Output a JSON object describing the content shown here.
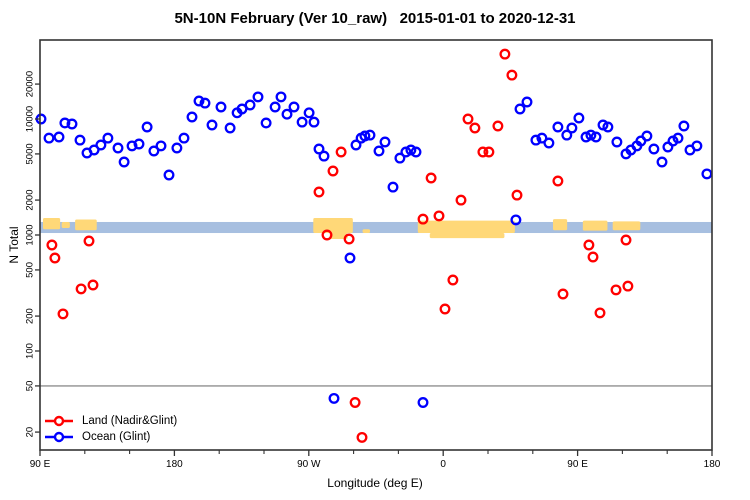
{
  "title": "5N-10N February (Ver 10_raw)   2015-01-01 to 2020-12-31",
  "legend": {
    "items": [
      {
        "label": "Land (Nadir&Glint)",
        "color": "#ff0000"
      },
      {
        "label": "Ocean (Glint)",
        "color": "#0000ff"
      }
    ]
  },
  "colors": {
    "land_series": "#ff0000",
    "ocean_series": "#0000ff",
    "ocean_band": "#a7bfe0",
    "land_band": "#ffd878",
    "reference_line": "#8f8f8f",
    "frame": "#333333"
  },
  "chart_data": {
    "type": "scatter",
    "title": "5N-10N February (Ver 10_raw)   2015-01-01 to 2020-12-31",
    "xlabel": "Longitude (deg E)",
    "ylabel": "N Total",
    "y_scale": "log",
    "ylim": [
      14,
      48000
    ],
    "y_ticks": [
      20,
      50,
      100,
      200,
      500,
      1000,
      2000,
      5000,
      10000,
      20000
    ],
    "x_axis_unwrapped_deg_range": [
      90,
      540
    ],
    "x_major_ticks": [
      {
        "deg": 90,
        "label": "90 E"
      },
      {
        "deg": 180,
        "label": "180"
      },
      {
        "deg": 270,
        "label": "90 W"
      },
      {
        "deg": 360,
        "label": "0"
      },
      {
        "deg": 450,
        "label": "90 E"
      },
      {
        "deg": 540,
        "label": "180"
      }
    ],
    "x_minor_ticks_deg": [
      120,
      150,
      210,
      240,
      300,
      330,
      390,
      420,
      480,
      510
    ],
    "reference_line_value": 50,
    "ocean_band": {
      "value_range": [
        1040,
        1295
      ],
      "note": "map strip: ocean"
    },
    "land_patches": [
      {
        "deg": [
          92,
          103.5
        ],
        "values": [
          1400,
          1120
        ]
      },
      {
        "deg": [
          104.5,
          110
        ],
        "values": [
          1294,
          1150
        ]
      },
      {
        "deg": [
          113.5,
          128
        ],
        "values": [
          1360,
          1100
        ]
      },
      {
        "deg": [
          273,
          299.5
        ],
        "values": [
          1400,
          1041
        ]
      },
      {
        "deg": [
          284,
          296
        ],
        "values": [
          1041,
          924
        ]
      },
      {
        "deg": [
          306,
          311
        ],
        "values": [
          1120,
          1041
        ]
      },
      {
        "deg": [
          343,
          408
        ],
        "values": [
          1330,
          1041
        ]
      },
      {
        "deg": [
          351,
          401
        ],
        "values": [
          1041,
          940
        ]
      },
      {
        "deg": [
          433.5,
          443
        ],
        "values": [
          1370,
          1100
        ]
      },
      {
        "deg": [
          453.5,
          470
        ],
        "values": [
          1330,
          1090
        ]
      },
      {
        "deg": [
          473.5,
          492
        ],
        "values": [
          1310,
          1100
        ]
      }
    ],
    "series": [
      {
        "name": "Ocean (Glint)",
        "color": "#0000ff",
        "points": [
          [
            90.7,
            10000
          ],
          [
            96.0,
            6850
          ],
          [
            102.7,
            7000
          ],
          [
            106.7,
            9230
          ],
          [
            111.4,
            9050
          ],
          [
            116.8,
            6580
          ],
          [
            121.5,
            5090
          ],
          [
            126.2,
            5400
          ],
          [
            130.8,
            5970
          ],
          [
            135.5,
            6850
          ],
          [
            142.2,
            5620
          ],
          [
            146.3,
            4260
          ],
          [
            151.6,
            5860
          ],
          [
            156.3,
            6090
          ],
          [
            161.7,
            8530
          ],
          [
            166.3,
            5300
          ],
          [
            171.0,
            5860
          ],
          [
            176.4,
            3290
          ],
          [
            181.7,
            5620
          ],
          [
            186.4,
            6850
          ],
          [
            191.8,
            10400
          ],
          [
            196.5,
            14300
          ],
          [
            200.5,
            13700
          ],
          [
            205.2,
            8880
          ],
          [
            211.2,
            12700
          ],
          [
            217.3,
            8370
          ],
          [
            222.0,
            11300
          ],
          [
            225.3,
            12200
          ],
          [
            230.7,
            13200
          ],
          [
            236.0,
            15500
          ],
          [
            241.4,
            9230
          ],
          [
            247.4,
            12700
          ],
          [
            251.4,
            15500
          ],
          [
            255.4,
            11000
          ],
          [
            260.1,
            12700
          ],
          [
            265.5,
            9410
          ],
          [
            270.2,
            11300
          ],
          [
            273.5,
            9410
          ],
          [
            276.8,
            5510
          ],
          [
            280.2,
            4790
          ],
          [
            286.9,
            39
          ],
          [
            297.6,
            633
          ],
          [
            301.6,
            5970
          ],
          [
            305.0,
            6850
          ],
          [
            307.6,
            7130
          ],
          [
            311.0,
            7270
          ],
          [
            317.0,
            5300
          ],
          [
            321.0,
            6340
          ],
          [
            326.4,
            2590
          ],
          [
            331.0,
            4600
          ],
          [
            335.0,
            5190
          ],
          [
            338.4,
            5400
          ],
          [
            341.8,
            5190
          ],
          [
            346.5,
            36
          ],
          [
            408.7,
            1350
          ],
          [
            411.4,
            12200
          ],
          [
            416.1,
            14000
          ],
          [
            422.1,
            6580
          ],
          [
            426.1,
            6850
          ],
          [
            430.8,
            6210
          ],
          [
            436.8,
            8530
          ],
          [
            442.8,
            7270
          ],
          [
            446.2,
            8370
          ],
          [
            450.9,
            10200
          ],
          [
            455.6,
            6990
          ],
          [
            458.9,
            7270
          ],
          [
            462.3,
            6990
          ],
          [
            467.0,
            8880
          ],
          [
            470.3,
            8530
          ],
          [
            476.3,
            6340
          ],
          [
            482.4,
            5000
          ],
          [
            485.7,
            5400
          ],
          [
            489.7,
            5860
          ],
          [
            492.4,
            6460
          ],
          [
            496.4,
            7130
          ],
          [
            501.1,
            5510
          ],
          [
            506.5,
            4260
          ],
          [
            510.5,
            5740
          ],
          [
            513.9,
            6460
          ],
          [
            517.2,
            6850
          ],
          [
            521.2,
            8700
          ],
          [
            525.3,
            5400
          ],
          [
            529.9,
            5860
          ],
          [
            536.6,
            3360
          ]
        ]
      },
      {
        "name": "Land (Nadir&Glint)",
        "color": "#ff0000",
        "points": [
          [
            98.0,
            820
          ],
          [
            100.0,
            633
          ],
          [
            105.4,
            209
          ],
          [
            117.5,
            343
          ],
          [
            122.8,
            888
          ],
          [
            125.5,
            371
          ],
          [
            276.8,
            2350
          ],
          [
            282.2,
            1000
          ],
          [
            286.2,
            3560
          ],
          [
            291.6,
            5190
          ],
          [
            297.0,
            924
          ],
          [
            301.0,
            36
          ],
          [
            305.6,
            18
          ],
          [
            346.5,
            1370
          ],
          [
            351.9,
            3100
          ],
          [
            357.2,
            1460
          ],
          [
            361.2,
            230
          ],
          [
            366.5,
            409
          ],
          [
            371.9,
            2000
          ],
          [
            376.6,
            10000
          ],
          [
            381.2,
            8370
          ],
          [
            386.6,
            5190
          ],
          [
            390.6,
            5190
          ],
          [
            396.6,
            8700
          ],
          [
            401.3,
            36300
          ],
          [
            406.0,
            23900
          ],
          [
            409.4,
            2210
          ],
          [
            436.8,
            2920
          ],
          [
            440.2,
            310
          ],
          [
            457.6,
            820
          ],
          [
            460.3,
            646
          ],
          [
            465.0,
            213
          ],
          [
            475.7,
            336
          ],
          [
            482.4,
            905
          ],
          [
            483.7,
            363
          ]
        ]
      }
    ]
  }
}
